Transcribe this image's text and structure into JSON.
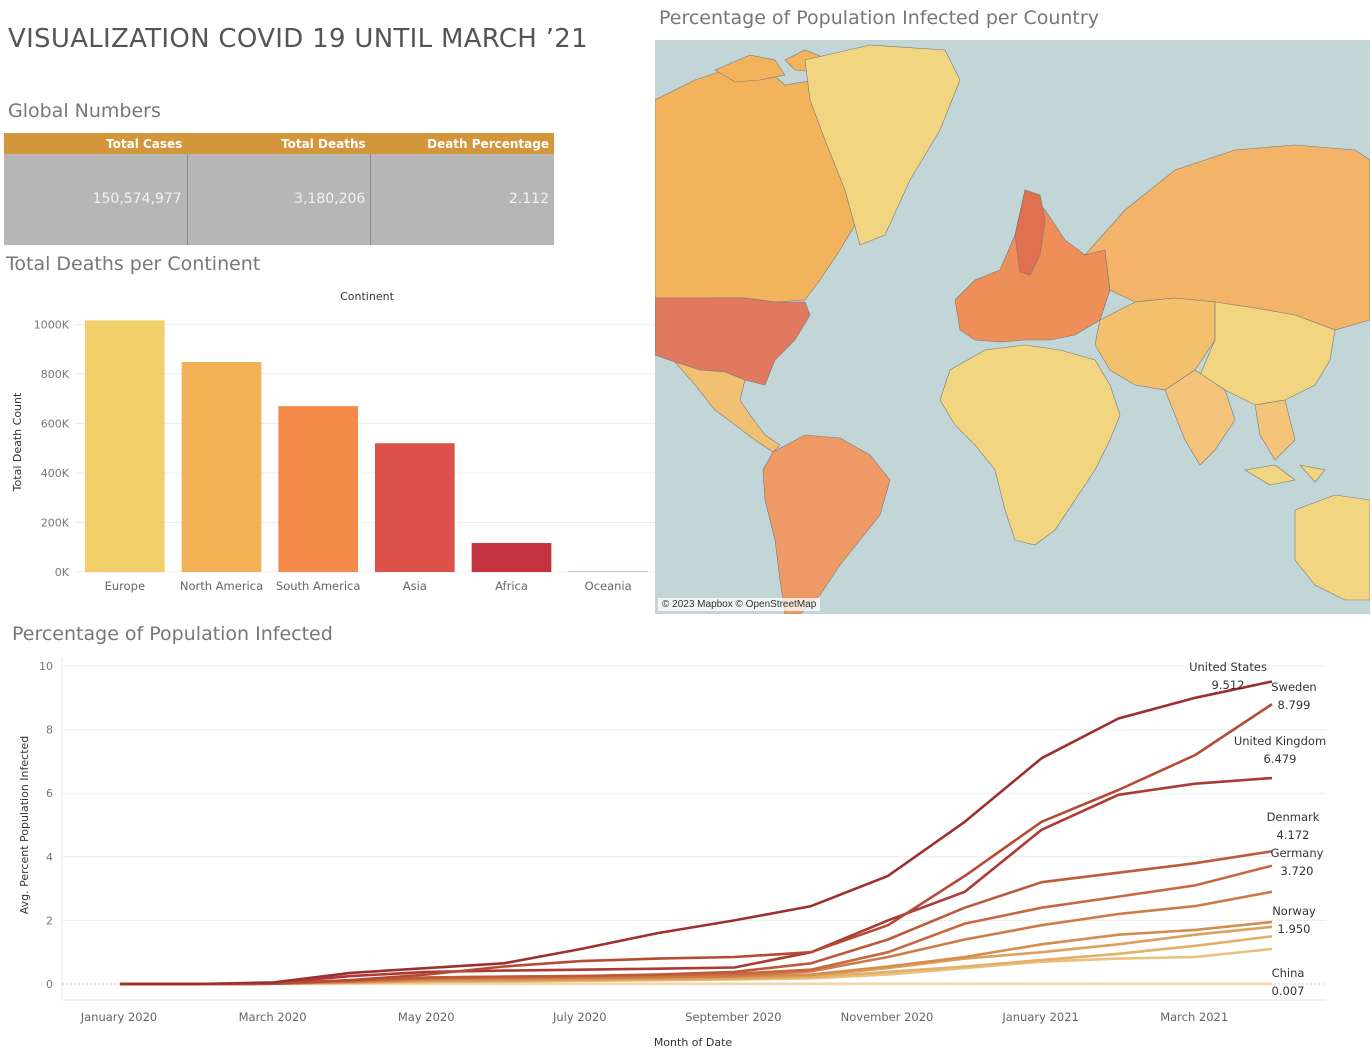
{
  "dashboard": {
    "title": "VISUALIZATION COVID 19 UNTIL MARCH ’21",
    "global_title": "Global Numbers",
    "continent_title": "Total Deaths per Continent",
    "map_title": "Percentage of Population Infected per Country",
    "line_title": "Percentage of Population Infected"
  },
  "global_numbers": {
    "headers": [
      "Total Cases",
      "Total Deaths",
      "Death Percentage"
    ],
    "values": [
      "150,574,977",
      "3,180,206",
      "2.112"
    ]
  },
  "map": {
    "attribution": "© 2023 Mapbox © OpenStreetMap",
    "ocean_color": "#c3d6d7",
    "scale_colors": [
      "#f2d581",
      "#f3b35c",
      "#ef8a57",
      "#e06a54",
      "#c73a3e"
    ]
  },
  "chart_data": [
    {
      "type": "bar",
      "column_header": "Continent",
      "categories": [
        "Europe",
        "North America",
        "South America",
        "Asia",
        "Africa",
        "Oceania"
      ],
      "values": [
        1016000,
        848000,
        670000,
        520000,
        117000,
        1000
      ],
      "colors": [
        "#f2cf6a",
        "#f4b054",
        "#f38a49",
        "#dc5149",
        "#c4323f",
        "#c4323f"
      ],
      "ylabel": "Total Death Count",
      "ylim": [
        0,
        1050000
      ],
      "yticks": [
        0,
        200000,
        400000,
        600000,
        800000,
        1000000
      ],
      "ytick_labels": [
        "0K",
        "200K",
        "400K",
        "600K",
        "800K",
        "1000K"
      ],
      "grid": true
    },
    {
      "type": "line",
      "xlabel": "Month of Date",
      "ylabel": "Avg. Percent Population Infected",
      "ylim": [
        0,
        10
      ],
      "yticks": [
        0,
        2,
        4,
        6,
        8,
        10
      ],
      "x": [
        "2020-01",
        "2020-02",
        "2020-03",
        "2020-04",
        "2020-05",
        "2020-06",
        "2020-07",
        "2020-08",
        "2020-09",
        "2020-10",
        "2020-11",
        "2020-12",
        "2021-01",
        "2021-02",
        "2021-03",
        "2021-04"
      ],
      "xtick_labels": [
        "January 2020",
        "March 2020",
        "May 2020",
        "July 2020",
        "September 2020",
        "November 2020",
        "January 2021",
        "March 2021"
      ],
      "xtick_index": [
        0,
        2,
        4,
        6,
        8,
        10,
        12,
        14
      ],
      "series": [
        {
          "name": "United States",
          "label_value": "9.512",
          "color": "#9e2f2f",
          "values": [
            0,
            0,
            0.05,
            0.35,
            0.5,
            0.65,
            1.1,
            1.6,
            2.0,
            2.45,
            3.4,
            5.1,
            7.1,
            8.35,
            9.0,
            9.512
          ]
        },
        {
          "name": "Sweden",
          "label_value": "8.799",
          "color": "#b64a35",
          "values": [
            0,
            0,
            0.02,
            0.12,
            0.3,
            0.55,
            0.72,
            0.8,
            0.85,
            1.0,
            1.85,
            3.4,
            5.1,
            6.1,
            7.2,
            8.799
          ]
        },
        {
          "name": "United Kingdom",
          "label_value": "6.479",
          "color": "#ab3a34",
          "values": [
            0,
            0,
            0.03,
            0.25,
            0.38,
            0.42,
            0.45,
            0.48,
            0.52,
            1.0,
            2.0,
            2.9,
            4.85,
            5.95,
            6.3,
            6.479
          ]
        },
        {
          "name": "Denmark",
          "label_value": "4.172",
          "color": "#bd5a3a",
          "values": [
            0,
            0,
            0.01,
            0.12,
            0.2,
            0.23,
            0.25,
            0.3,
            0.38,
            0.65,
            1.4,
            2.4,
            3.2,
            3.5,
            3.8,
            4.172
          ]
        },
        {
          "name": "Germany",
          "label_value": "3.720",
          "color": "#c7683f",
          "values": [
            0,
            0,
            0.01,
            0.1,
            0.2,
            0.23,
            0.25,
            0.28,
            0.32,
            0.45,
            1.0,
            1.9,
            2.4,
            2.75,
            3.1,
            3.72
          ]
        },
        {
          "name": "",
          "label_value": "",
          "color": "#cf7a46",
          "values": [
            0,
            0,
            0.01,
            0.08,
            0.15,
            0.18,
            0.2,
            0.22,
            0.26,
            0.4,
            0.85,
            1.4,
            1.85,
            2.2,
            2.45,
            2.9
          ]
        },
        {
          "name": "Norway",
          "label_value": "1.950",
          "color": "#d58c4e",
          "values": [
            0,
            0,
            0.01,
            0.07,
            0.14,
            0.16,
            0.18,
            0.2,
            0.24,
            0.3,
            0.55,
            0.85,
            1.25,
            1.55,
            1.7,
            1.95
          ]
        },
        {
          "name": "",
          "label_value": "",
          "color": "#dca05c",
          "values": [
            0,
            0,
            0.01,
            0.05,
            0.1,
            0.12,
            0.14,
            0.16,
            0.2,
            0.26,
            0.5,
            0.8,
            1.0,
            1.25,
            1.55,
            1.8
          ]
        },
        {
          "name": "",
          "label_value": "",
          "color": "#e3b06a",
          "values": [
            0,
            0,
            0.01,
            0.04,
            0.08,
            0.1,
            0.12,
            0.14,
            0.17,
            0.22,
            0.38,
            0.55,
            0.75,
            0.95,
            1.2,
            1.5
          ]
        },
        {
          "name": "",
          "label_value": "",
          "color": "#eac07c",
          "values": [
            0,
            0,
            0.01,
            0.03,
            0.06,
            0.08,
            0.1,
            0.12,
            0.14,
            0.18,
            0.3,
            0.5,
            0.7,
            0.8,
            0.85,
            1.1
          ]
        },
        {
          "name": "China",
          "label_value": "0.007",
          "color": "#f0d5a8",
          "values": [
            0,
            0.006,
            0.006,
            0.006,
            0.006,
            0.006,
            0.006,
            0.006,
            0.006,
            0.006,
            0.006,
            0.006,
            0.007,
            0.007,
            0.007,
            0.007
          ]
        }
      ],
      "grid": true
    }
  ]
}
